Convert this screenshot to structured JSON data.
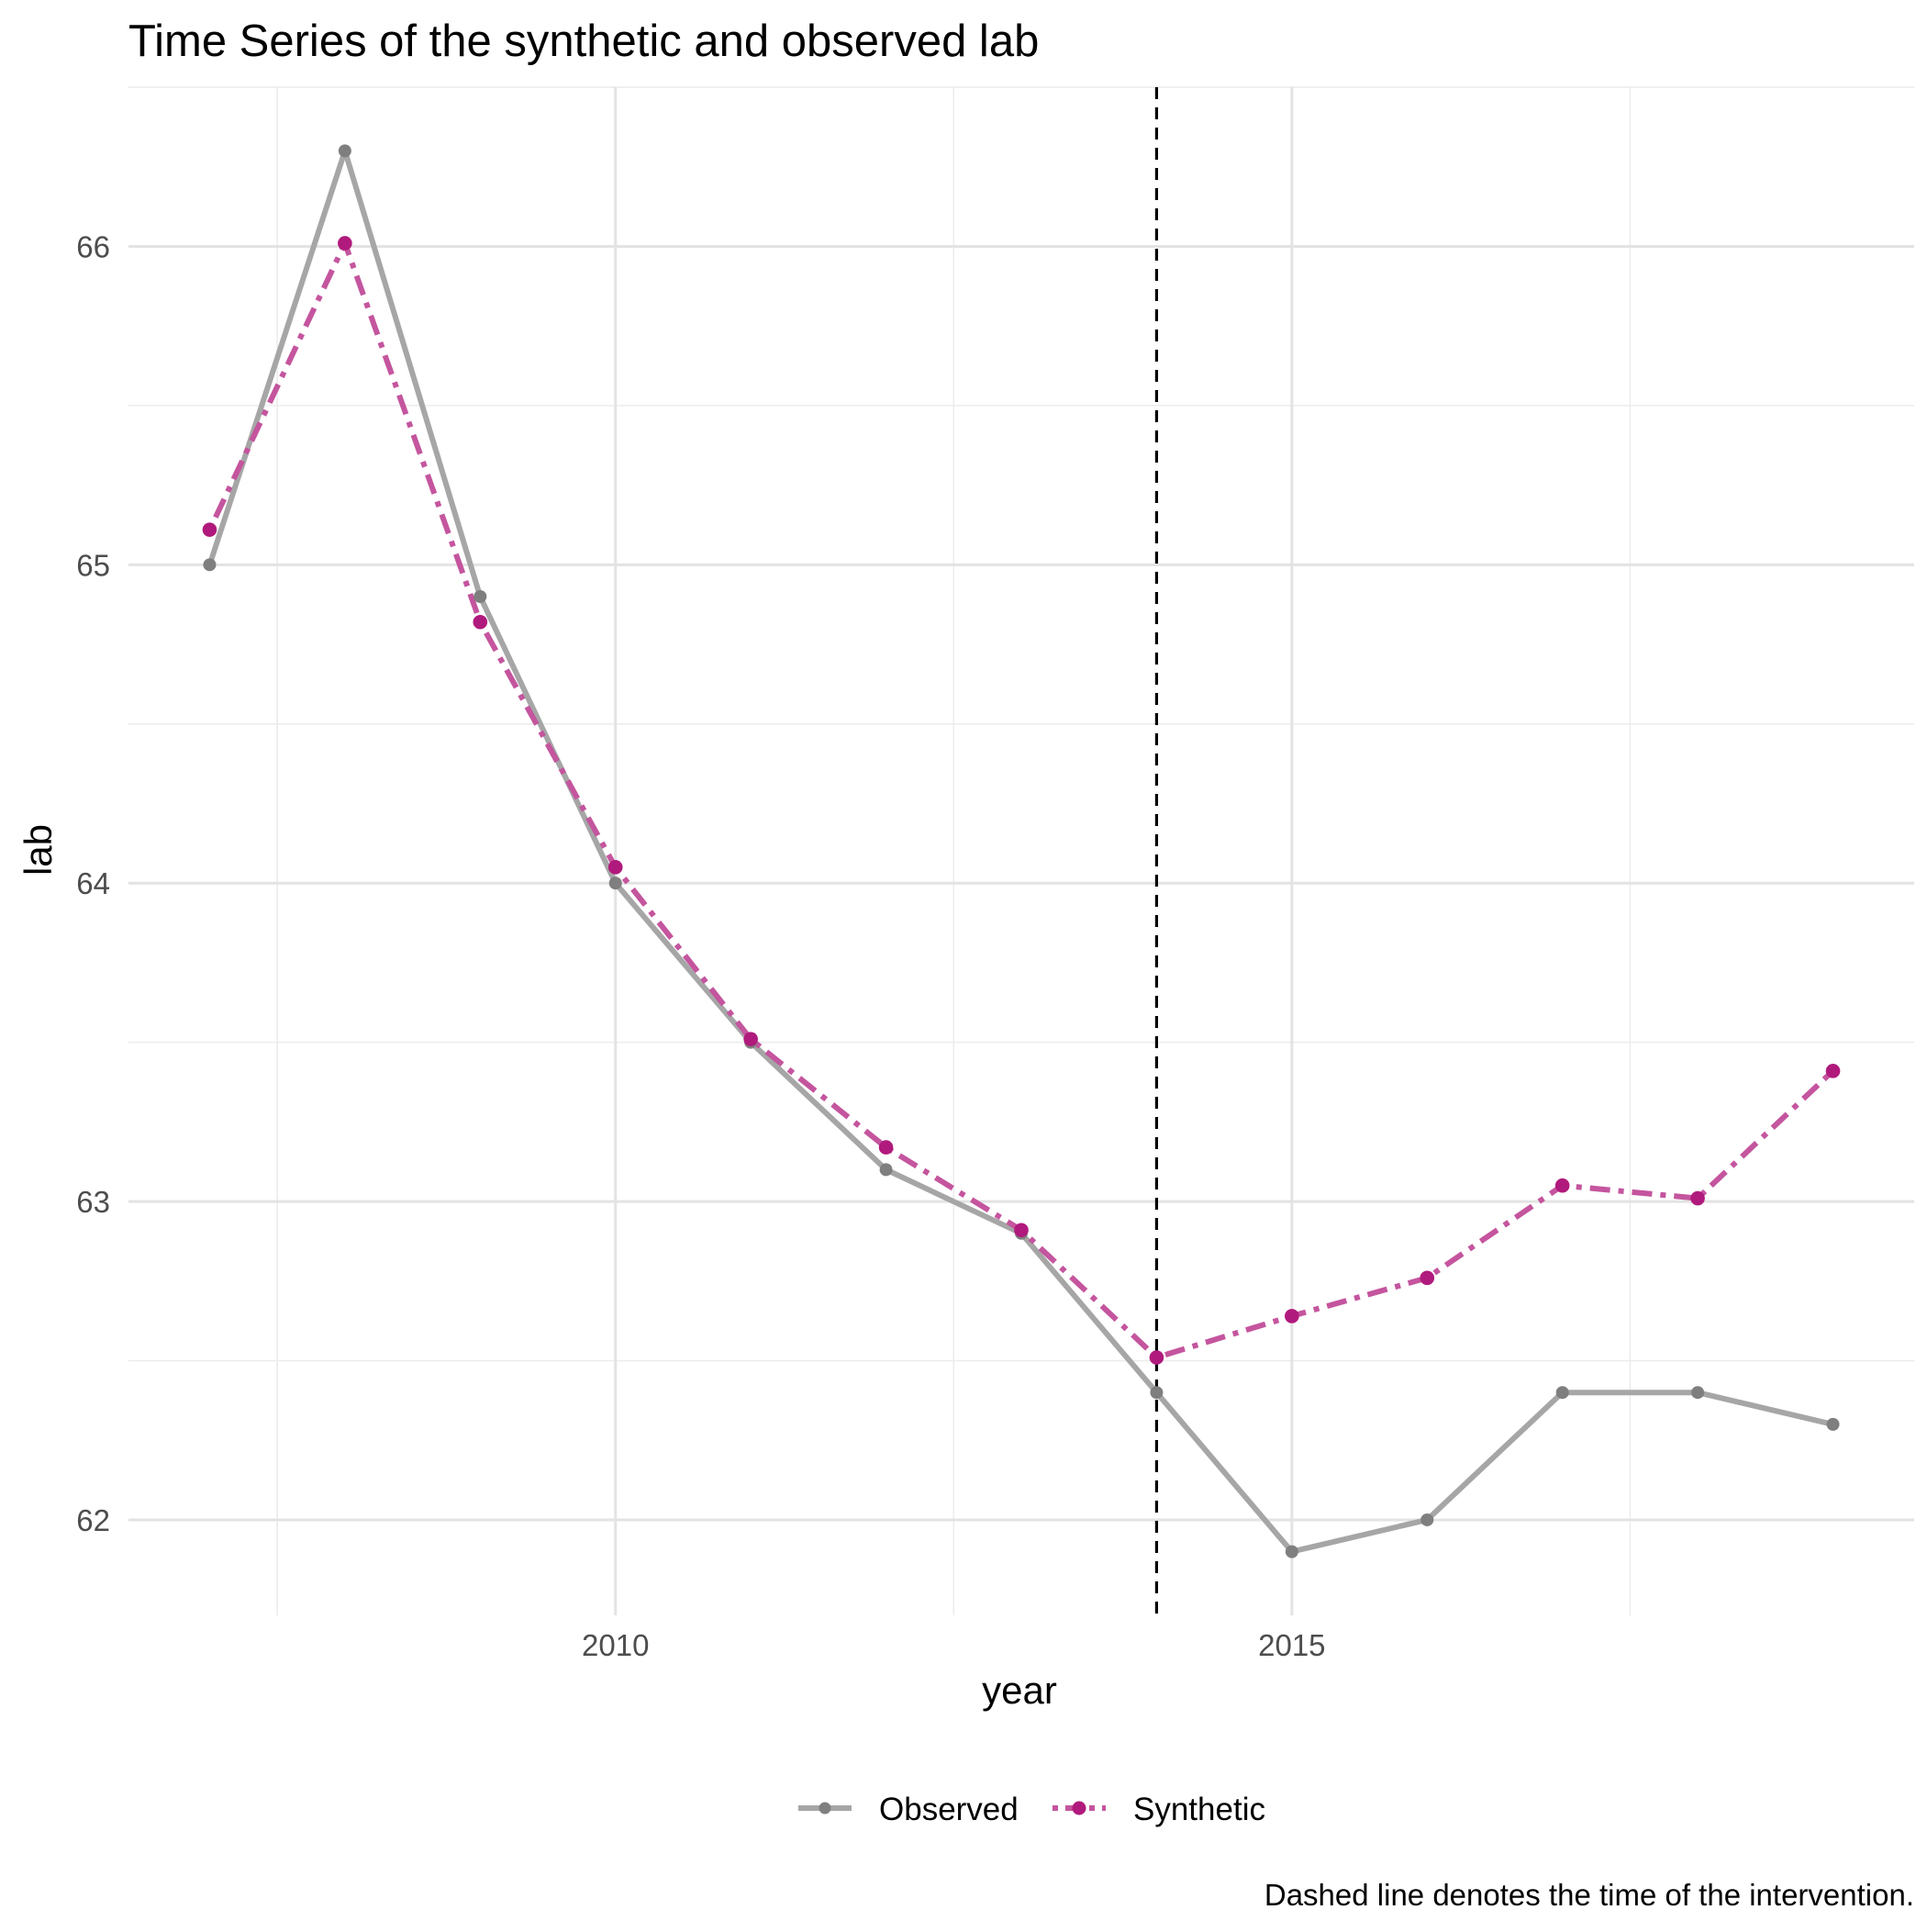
{
  "chart_data": {
    "type": "line",
    "title": "Time Series of the synthetic and observed lab",
    "xlabel": "year",
    "ylabel": "lab",
    "caption": "Dashed line denotes the time of the intervention.",
    "x": [
      2007,
      2008,
      2009,
      2010,
      2011,
      2012,
      2013,
      2014,
      2015,
      2016,
      2017,
      2018,
      2019
    ],
    "xlim": [
      2006.4,
      2019.6
    ],
    "ylim": [
      61.7,
      66.5
    ],
    "xticks": [
      2010,
      2015
    ],
    "xtick_labels": [
      "2010",
      "2015"
    ],
    "x_minor_gridlines": [
      2007.5,
      2012.5,
      2017.5
    ],
    "yticks": [
      62,
      63,
      64,
      65,
      66
    ],
    "ytick_labels": [
      "62",
      "63",
      "64",
      "65",
      "66"
    ],
    "y_minor_gridlines": [
      62.5,
      63.5,
      64.5,
      65.5,
      66.5
    ],
    "intervention_x": 2014,
    "grid": true,
    "legend_position": "bottom",
    "series": [
      {
        "name": "Observed",
        "color": "#a6a6a6",
        "point_color": "#7f7f7f",
        "linestyle": "solid",
        "values": [
          65.0,
          66.3,
          64.9,
          64.0,
          63.5,
          63.1,
          62.9,
          62.4,
          61.9,
          62.0,
          62.4,
          62.4,
          62.3
        ]
      },
      {
        "name": "Synthetic",
        "color": "#c4559e",
        "point_color": "#b01a7c",
        "linestyle": "dashdot",
        "values": [
          65.11,
          66.01,
          64.82,
          64.05,
          63.51,
          63.17,
          62.91,
          62.51,
          62.64,
          62.76,
          63.05,
          63.01,
          63.41
        ]
      }
    ]
  }
}
